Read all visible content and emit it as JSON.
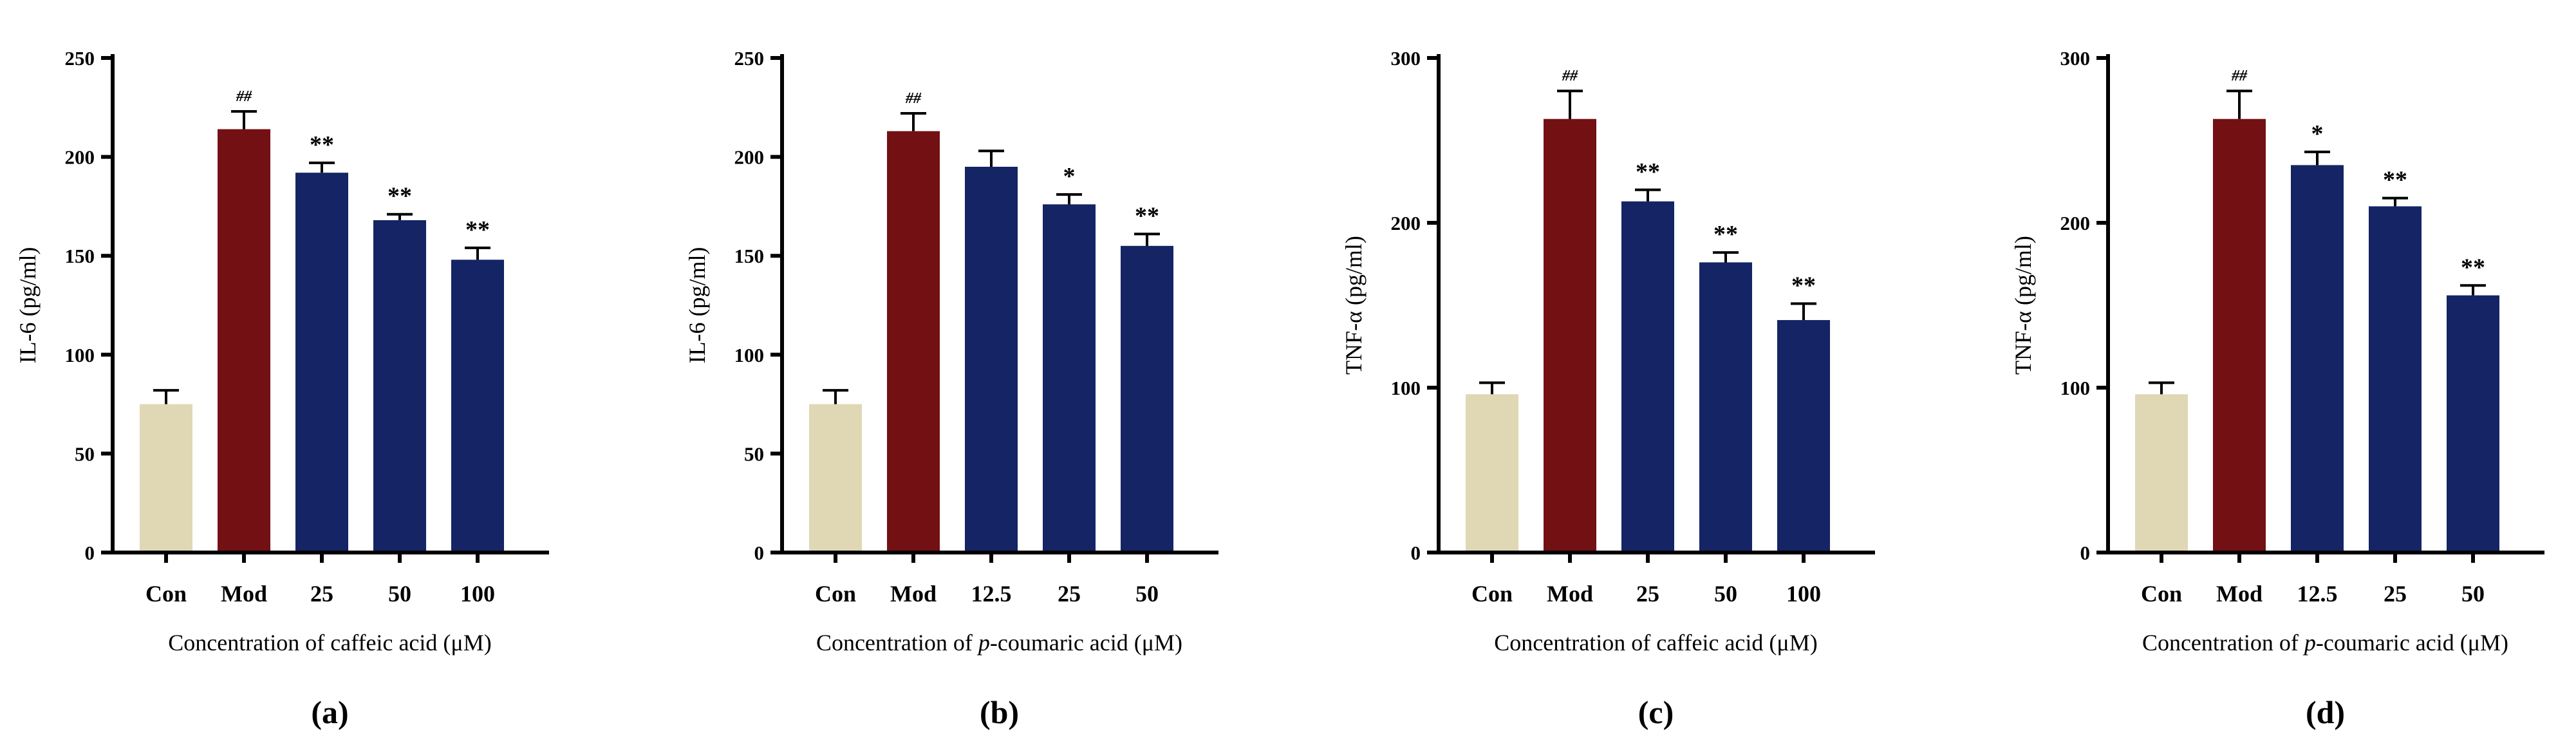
{
  "colors": {
    "con": "#E0D7B5",
    "mod": "#731014",
    "treat": "#142464",
    "axis": "#000000"
  },
  "chart_data": [
    {
      "type": "bar",
      "panel_label": "(a)",
      "ylabel": "IL-6 (pg/ml)",
      "xlabel_parts": [
        {
          "text": "Concentration of  caffeic acid (μM)",
          "italic": false
        }
      ],
      "ylim": [
        0,
        250
      ],
      "yticks": [
        0,
        50,
        100,
        150,
        200,
        250
      ],
      "categories": [
        "Con",
        "Mod",
        "25",
        "50",
        "100"
      ],
      "values": [
        75,
        214,
        192,
        168,
        148
      ],
      "errors": [
        7,
        9,
        5,
        3,
        6
      ],
      "bar_colors": [
        "con",
        "mod",
        "treat",
        "treat",
        "treat"
      ],
      "annotations": [
        "",
        "##",
        "**",
        "**",
        "**"
      ]
    },
    {
      "type": "bar",
      "panel_label": "(b)",
      "ylabel": "IL-6 (pg/ml)",
      "xlabel_parts": [
        {
          "text": "Concentration of  ",
          "italic": false
        },
        {
          "text": "p",
          "italic": true
        },
        {
          "text": "-coumaric acid (μM)",
          "italic": false
        }
      ],
      "ylim": [
        0,
        250
      ],
      "yticks": [
        0,
        50,
        100,
        150,
        200,
        250
      ],
      "categories": [
        "Con",
        "Mod",
        "12.5",
        "25",
        "50"
      ],
      "values": [
        75,
        213,
        195,
        176,
        155
      ],
      "errors": [
        7,
        9,
        8,
        5,
        6
      ],
      "bar_colors": [
        "con",
        "mod",
        "treat",
        "treat",
        "treat"
      ],
      "annotations": [
        "",
        "##",
        "",
        "*",
        "**"
      ]
    },
    {
      "type": "bar",
      "panel_label": "(c)",
      "ylabel": "TNF-α (pg/ml)",
      "xlabel_parts": [
        {
          "text": "Concentration of  caffeic acid (μM)",
          "italic": false
        }
      ],
      "ylim": [
        0,
        300
      ],
      "yticks": [
        0,
        100,
        200,
        300
      ],
      "categories": [
        "Con",
        "Mod",
        "25",
        "50",
        "100"
      ],
      "values": [
        96,
        263,
        213,
        176,
        141
      ],
      "errors": [
        7,
        17,
        7,
        6,
        10
      ],
      "bar_colors": [
        "con",
        "mod",
        "treat",
        "treat",
        "treat"
      ],
      "annotations": [
        "",
        "##",
        "**",
        "**",
        "**"
      ]
    },
    {
      "type": "bar",
      "panel_label": "(d)",
      "ylabel": "TNF-α (pg/ml)",
      "xlabel_parts": [
        {
          "text": "Concentration of  ",
          "italic": false
        },
        {
          "text": "p",
          "italic": true
        },
        {
          "text": "-coumaric acid (μM)",
          "italic": false
        }
      ],
      "ylim": [
        0,
        300
      ],
      "yticks": [
        0,
        100,
        200,
        300
      ],
      "categories": [
        "Con",
        "Mod",
        "12.5",
        "25",
        "50"
      ],
      "values": [
        96,
        263,
        235,
        210,
        156
      ],
      "errors": [
        7,
        17,
        8,
        5,
        6
      ],
      "bar_colors": [
        "con",
        "mod",
        "treat",
        "treat",
        "treat"
      ],
      "annotations": [
        "",
        "##",
        "*",
        "**",
        "**"
      ]
    }
  ]
}
